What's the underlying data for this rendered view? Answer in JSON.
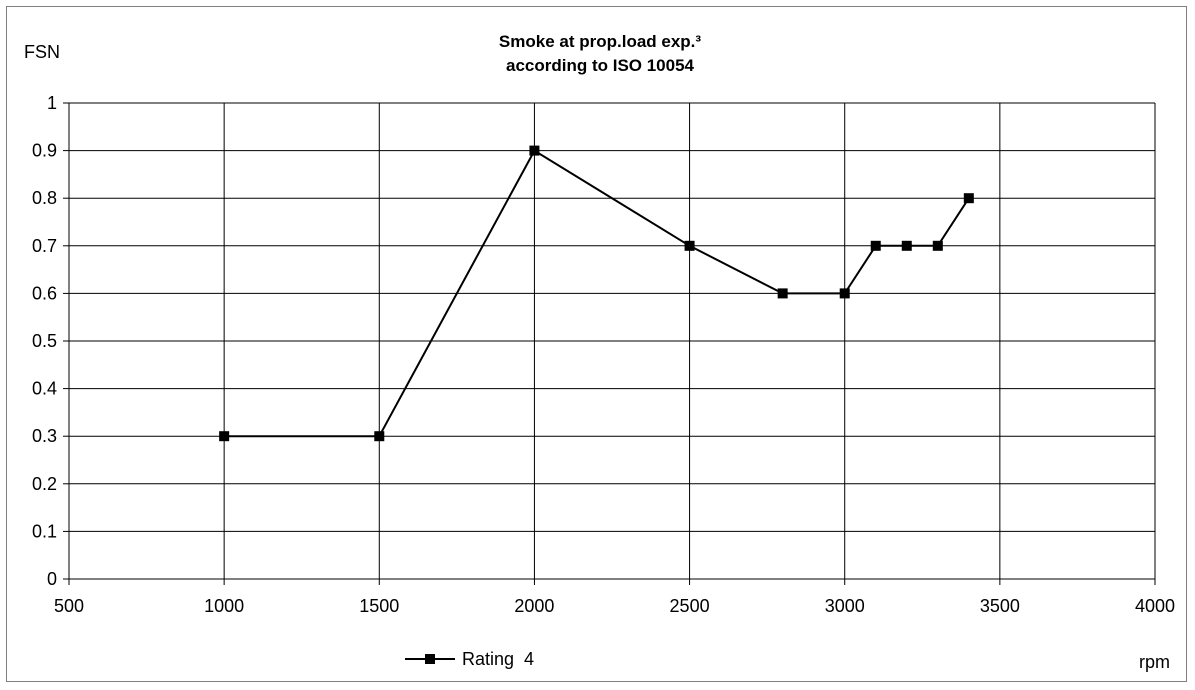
{
  "chart_data": {
    "type": "line",
    "title_lines": [
      "Smoke at prop.load exp.³",
      "according to ISO 10054"
    ],
    "ylabel": "FSN",
    "xlabel": "rpm",
    "xlim": [
      500,
      4000
    ],
    "ylim": [
      0,
      1
    ],
    "x_ticks": [
      500,
      1000,
      1500,
      2000,
      2500,
      3000,
      3500,
      4000
    ],
    "y_ticks": [
      0,
      0.1,
      0.2,
      0.3,
      0.4,
      0.5,
      0.6,
      0.7,
      0.8,
      0.9,
      1
    ],
    "x_tick_labels": [
      "500",
      "1000",
      "1500",
      "2000",
      "2500",
      "3000",
      "3500",
      "4000"
    ],
    "y_tick_labels": [
      "0",
      "0.1",
      "0.2",
      "0.3",
      "0.4",
      "0.5",
      "0.6",
      "0.7",
      "0.8",
      "0.9",
      "1"
    ],
    "grid": true,
    "legend_position": "bottom",
    "series": [
      {
        "name": "Rating  4",
        "color": "#000000",
        "marker": "square",
        "x": [
          1000,
          1500,
          2000,
          2500,
          2800,
          3000,
          3100,
          3200,
          3300,
          3400
        ],
        "y": [
          0.3,
          0.3,
          0.9,
          0.7,
          0.6,
          0.6,
          0.7,
          0.7,
          0.7,
          0.8
        ]
      }
    ]
  }
}
